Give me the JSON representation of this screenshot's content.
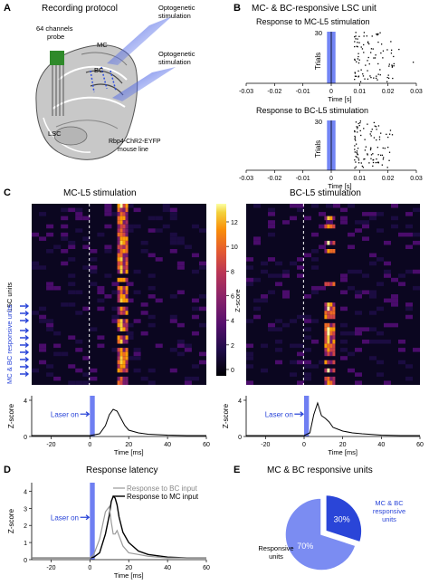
{
  "panelA": {
    "letter": "A",
    "title": "Recording protocol",
    "probe": [
      "64 channels",
      "probe"
    ],
    "opto1": [
      "Optogenetic",
      "stimulation"
    ],
    "opto2": [
      "Optogenetic",
      "stimulation"
    ],
    "mc": "MC",
    "bc": "BC",
    "lsc": "LSC",
    "line": [
      "Rbp4-ChR2-EYFP",
      "mouse line"
    ]
  },
  "panelB": {
    "letter": "B",
    "title": "MC- & BC-responsive LSC unit",
    "rasters": [
      {
        "subtitle": "Response to MC-L5 stimulation",
        "ylabel": "Trials",
        "ymax_label": "30",
        "xlabel": "Time [s]",
        "xticks": [
          "-0.03",
          "-0.02",
          "-0.01",
          "0",
          "0.01",
          "0.02",
          "0.03"
        ]
      },
      {
        "subtitle": "Response to BC-L5 stimulation",
        "ylabel": "Trials",
        "ymax_label": "30",
        "xlabel": "Time [s]",
        "xticks": [
          "-0.03",
          "-0.02",
          "-0.01",
          "0",
          "0.01",
          "0.02",
          "0.03"
        ]
      }
    ]
  },
  "panelC": {
    "letter": "C",
    "ylabel_units": "LSC units",
    "responsive_label": "MC & BC responsive units",
    "colorbar": {
      "label": "Z-score",
      "ticks": [
        "0",
        "2",
        "4",
        "6",
        "8",
        "10",
        "12"
      ]
    },
    "heatmaps": [
      {
        "title": "MC-L5 stimulation"
      },
      {
        "title": "BC-L5 stimulation"
      }
    ],
    "traces": [
      {
        "ylabel": "Z-score",
        "xlabel": "Time [ms]",
        "laser": "Laser on",
        "yticks": [
          "0",
          "4"
        ],
        "xticks": [
          "-20",
          "0",
          "20",
          "40",
          "60"
        ]
      },
      {
        "ylabel": "Z-score",
        "xlabel": "Time [ms]",
        "laser": "Laser on",
        "yticks": [
          "0",
          "4"
        ],
        "xticks": [
          "-20",
          "0",
          "20",
          "40",
          "60"
        ]
      }
    ]
  },
  "panelD": {
    "letter": "D",
    "title": "Response latency",
    "ylabel": "Z-score",
    "xlabel": "Time [ms]",
    "laser": "Laser on",
    "legend_bc": "Response to BC input",
    "legend_mc": "Response to MC input",
    "yticks": [
      "0",
      "1",
      "2",
      "3",
      "4"
    ],
    "xticks": [
      "-20",
      "0",
      "20",
      "40",
      "60"
    ]
  },
  "panelE": {
    "letter": "E",
    "title": "MC & BC responsive units",
    "pct_resp": "30%",
    "pct_other": "70%",
    "label_resp": [
      "MC & BC",
      "responsive",
      "units"
    ],
    "label_other": [
      "Responsive",
      "units"
    ]
  },
  "chart_data": [
    {
      "type": "pie",
      "title": "MC & BC responsive units",
      "categories": [
        "MC & BC responsive units",
        "Responsive units"
      ],
      "values": [
        30,
        70
      ]
    },
    {
      "type": "line",
      "title": "Response latency",
      "xlabel": "Time [ms]",
      "ylabel": "Z-score",
      "xlim": [
        -30,
        60
      ],
      "ylim": [
        0,
        4.5
      ],
      "x": [
        -30,
        -20,
        -10,
        0,
        2,
        5,
        8,
        10,
        11,
        12,
        13,
        14,
        15,
        17,
        20,
        25,
        30,
        40,
        50,
        60
      ],
      "series": [
        {
          "name": "Response to MC input",
          "values": [
            0.1,
            0.1,
            0.1,
            0.1,
            0.15,
            0.4,
            1.5,
            2.6,
            3.4,
            3.7,
            3.6,
            3.2,
            2.5,
            1.6,
            1.0,
            0.5,
            0.3,
            0.15,
            0.1,
            0.1
          ]
        },
        {
          "name": "Response to BC input",
          "values": [
            0.1,
            0.1,
            0.1,
            0.1,
            0.3,
            1.2,
            2.8,
            3.1,
            2.2,
            1.5,
            1.5,
            1.7,
            1.4,
            0.8,
            0.4,
            0.3,
            0.2,
            0.1,
            0.1,
            0.1
          ]
        }
      ]
    },
    {
      "type": "line",
      "title": "MC-L5 stimulation",
      "xlabel": "Time [ms]",
      "ylabel": "Z-score",
      "xlim": [
        -30,
        60
      ],
      "ylim": [
        0,
        4.5
      ],
      "x": [
        -30,
        -20,
        -10,
        0,
        5,
        8,
        10,
        12,
        14,
        16,
        18,
        20,
        25,
        30,
        40,
        50,
        60
      ],
      "series": [
        {
          "name": "",
          "values": [
            0.1,
            0.1,
            0.1,
            0.1,
            0.3,
            1.2,
            2.4,
            3.0,
            2.8,
            2.0,
            1.2,
            0.7,
            0.4,
            0.25,
            0.15,
            0.1,
            0.1
          ]
        }
      ]
    },
    {
      "type": "line",
      "title": "BC-L5 stimulation",
      "xlabel": "Time [ms]",
      "ylabel": "Z-score",
      "xlim": [
        -30,
        60
      ],
      "ylim": [
        0,
        4.5
      ],
      "x": [
        -30,
        -20,
        -10,
        0,
        3,
        5,
        7,
        9,
        11,
        13,
        15,
        20,
        25,
        30,
        40,
        50,
        60
      ],
      "series": [
        {
          "name": "",
          "values": [
            0.1,
            0.1,
            0.1,
            0.1,
            0.4,
            2.4,
            3.7,
            2.3,
            2.0,
            1.6,
            1.0,
            0.6,
            0.4,
            0.3,
            0.15,
            0.1,
            0.1
          ]
        }
      ]
    }
  ]
}
